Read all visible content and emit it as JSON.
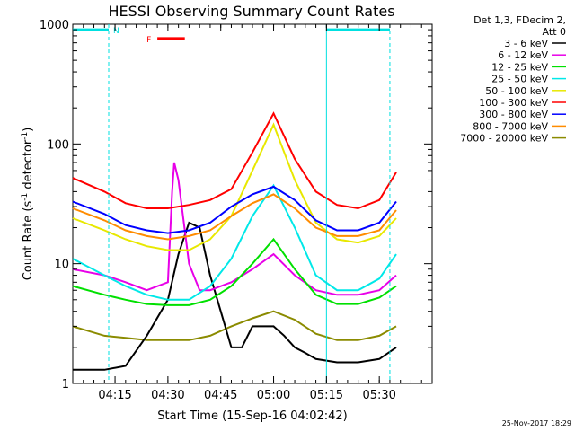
{
  "chart_data": {
    "type": "line",
    "title": "HESSI Observing Summary Count Rates",
    "xlabel": "Start Time (15-Sep-16 04:02:42)",
    "ylabel_main": "Count Rate (s",
    "ylabel_sup1": "-1",
    "ylabel_mid": " detector",
    "ylabel_sup2": "-1",
    "ylabel_end": ")",
    "yscale": "log",
    "ylim": [
      1,
      1000
    ],
    "xlim_minutes": [
      4.05,
      5.75
    ],
    "x_ticks": [
      {
        "label": "04:15",
        "value": 4.25
      },
      {
        "label": "04:30",
        "value": 4.5
      },
      {
        "label": "04:45",
        "value": 4.75
      },
      {
        "label": "05:00",
        "value": 5.0
      },
      {
        "label": "05:15",
        "value": 5.25
      },
      {
        "label": "05:30",
        "value": 5.5
      }
    ],
    "y_ticks": [
      {
        "label": "1",
        "value": 1
      },
      {
        "label": "10",
        "value": 10
      },
      {
        "label": "100",
        "value": 100
      },
      {
        "label": "1000",
        "value": 1000
      }
    ],
    "legend_header": [
      "Det 1,3, FDecim 2,",
      "Att 0"
    ],
    "legend_placement": "right",
    "series": [
      {
        "name": "3 - 6 keV",
        "color": "#000000",
        "x": [
          4.05,
          4.2,
          4.3,
          4.4,
          4.5,
          4.55,
          4.6,
          4.65,
          4.7,
          4.75,
          4.8,
          4.85,
          4.9,
          4.95,
          5.0,
          5.05,
          5.1,
          5.15,
          5.2,
          5.3,
          5.4,
          5.5,
          5.58
        ],
        "values": [
          1.3,
          1.3,
          1.4,
          2.5,
          5,
          12,
          22,
          20,
          8,
          4,
          2,
          2,
          3,
          3,
          3,
          2.5,
          2,
          1.8,
          1.6,
          1.5,
          1.5,
          1.6,
          2
        ]
      },
      {
        "name": "6 - 12 keV",
        "color": "#e800e8",
        "x": [
          4.05,
          4.2,
          4.3,
          4.4,
          4.5,
          4.52,
          4.53,
          4.55,
          4.6,
          4.65,
          4.7,
          4.8,
          4.9,
          5.0,
          5.1,
          5.2,
          5.3,
          5.4,
          5.5,
          5.58
        ],
        "values": [
          9,
          8,
          7,
          6,
          7,
          40,
          70,
          50,
          10,
          6,
          6,
          7,
          9,
          12,
          8,
          6,
          5.5,
          5.5,
          6,
          8
        ]
      },
      {
        "name": "12 - 25 keV",
        "color": "#00e000",
        "x": [
          4.05,
          4.2,
          4.3,
          4.4,
          4.5,
          4.6,
          4.7,
          4.8,
          4.9,
          5.0,
          5.1,
          5.2,
          5.3,
          5.4,
          5.5,
          5.58
        ],
        "values": [
          6.5,
          5.5,
          5,
          4.6,
          4.5,
          4.5,
          5,
          6.5,
          10,
          16,
          9,
          5.5,
          4.6,
          4.6,
          5.2,
          6.5
        ]
      },
      {
        "name": "25 - 50 keV",
        "color": "#00e8e8",
        "x": [
          4.05,
          4.2,
          4.3,
          4.4,
          4.5,
          4.6,
          4.7,
          4.8,
          4.9,
          5.0,
          5.1,
          5.2,
          5.3,
          5.4,
          5.5,
          5.58
        ],
        "values": [
          11,
          8,
          6.5,
          5.5,
          5,
          5,
          6.5,
          11,
          25,
          45,
          20,
          8,
          6,
          6,
          7.5,
          12
        ]
      },
      {
        "name": "50 - 100 keV",
        "color": "#e8e800",
        "x": [
          4.05,
          4.2,
          4.3,
          4.4,
          4.5,
          4.6,
          4.7,
          4.8,
          4.9,
          5.0,
          5.1,
          5.2,
          5.3,
          5.4,
          5.5,
          5.58
        ],
        "values": [
          24,
          19,
          16,
          14,
          13,
          13,
          16,
          25,
          60,
          145,
          50,
          22,
          16,
          15,
          17,
          24
        ]
      },
      {
        "name": "100 - 300 keV",
        "color": "#ff0000",
        "x": [
          4.05,
          4.2,
          4.3,
          4.4,
          4.5,
          4.6,
          4.7,
          4.8,
          4.9,
          5.0,
          5.1,
          5.2,
          5.3,
          5.4,
          5.5,
          5.58
        ],
        "values": [
          52,
          40,
          32,
          29,
          29,
          31,
          34,
          42,
          85,
          180,
          75,
          40,
          31,
          29,
          34,
          58
        ]
      },
      {
        "name": "300 - 800 keV",
        "color": "#0000ff",
        "x": [
          4.05,
          4.2,
          4.3,
          4.4,
          4.5,
          4.6,
          4.7,
          4.8,
          4.9,
          5.0,
          5.1,
          5.2,
          5.3,
          5.4,
          5.5,
          5.58
        ],
        "values": [
          33,
          26,
          21,
          19,
          18,
          19,
          22,
          30,
          38,
          44,
          34,
          23,
          19,
          19,
          22,
          33
        ]
      },
      {
        "name": "800 - 7000 keV",
        "color": "#ff8c00",
        "x": [
          4.05,
          4.2,
          4.3,
          4.4,
          4.5,
          4.6,
          4.7,
          4.8,
          4.9,
          5.0,
          5.1,
          5.2,
          5.3,
          5.4,
          5.5,
          5.58
        ],
        "values": [
          29,
          23,
          19,
          17,
          16,
          17,
          19,
          25,
          32,
          38,
          29,
          20,
          17,
          17,
          19,
          28
        ]
      },
      {
        "name": "7000 - 20000 keV",
        "color": "#8b8b00",
        "x": [
          4.05,
          4.2,
          4.3,
          4.4,
          4.5,
          4.6,
          4.7,
          4.8,
          4.9,
          5.0,
          5.1,
          5.2,
          5.3,
          5.4,
          5.5,
          5.58
        ],
        "values": [
          3,
          2.5,
          2.4,
          2.3,
          2.3,
          2.3,
          2.5,
          3,
          3.5,
          4,
          3.4,
          2.6,
          2.3,
          2.3,
          2.5,
          3
        ]
      }
    ],
    "annotations": {
      "night_label": "N",
      "night_intervals": [
        [
          4.05,
          4.22
        ],
        [
          5.25,
          5.55
        ]
      ],
      "night_level": 900,
      "flare_label": "F",
      "flare_interval": [
        4.45,
        4.58
      ],
      "flare_level": 760
    },
    "colors": {
      "night": "#00e0e0",
      "flare": "#ff0000"
    }
  },
  "timestamp": "25-Nov-2017 18:29"
}
